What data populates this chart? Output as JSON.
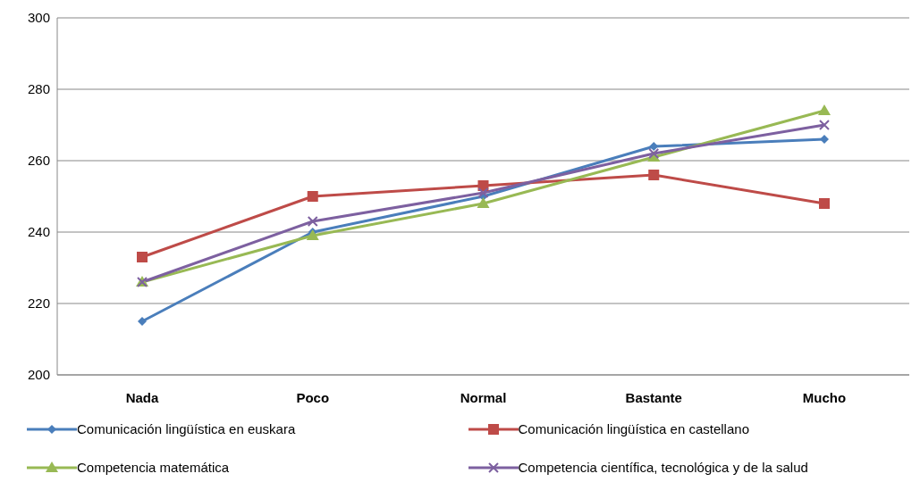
{
  "chart_data": {
    "type": "line",
    "categories": [
      "Nada",
      "Poco",
      "Normal",
      "Bastante",
      "Mucho"
    ],
    "series": [
      {
        "name": "Comunicación lingüística en euskara",
        "color": "#4a7ebb",
        "marker": "diamond",
        "values": [
          215,
          240,
          250,
          264,
          266
        ]
      },
      {
        "name": "Comunicación lingüística en castellano",
        "color": "#be4b48",
        "marker": "square",
        "values": [
          233,
          250,
          253,
          256,
          248
        ]
      },
      {
        "name": "Competencia matemática",
        "color": "#98b954",
        "marker": "triangle",
        "values": [
          226,
          239,
          248,
          261,
          274
        ]
      },
      {
        "name": "Competencia científica, tecnológica y de la salud",
        "color": "#7d60a0",
        "marker": "cross",
        "values": [
          226,
          243,
          251,
          262,
          270
        ]
      }
    ],
    "ylim": [
      200,
      300
    ],
    "yticks": [
      200,
      220,
      240,
      260,
      280,
      300
    ],
    "grid": "y",
    "legend": "bottom",
    "line_style": "solid"
  }
}
